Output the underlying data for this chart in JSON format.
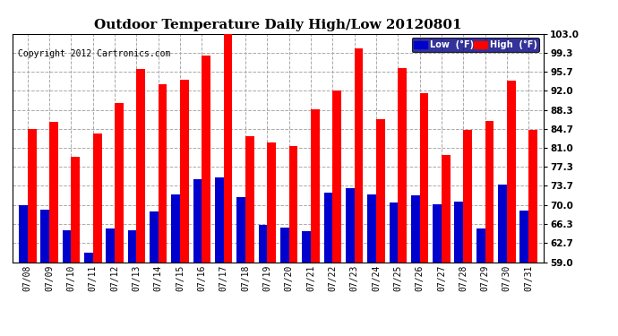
{
  "title": "Outdoor Temperature Daily High/Low 20120801",
  "copyright": "Copyright 2012 Cartronics.com",
  "legend_low": "Low  (°F)",
  "legend_high": "High  (°F)",
  "dates": [
    "07/08",
    "07/09",
    "07/10",
    "07/11",
    "07/12",
    "07/13",
    "07/14",
    "07/15",
    "07/16",
    "07/17",
    "07/18",
    "07/19",
    "07/20",
    "07/21",
    "07/22",
    "07/23",
    "07/24",
    "07/25",
    "07/26",
    "07/27",
    "07/28",
    "07/29",
    "07/30",
    "07/31"
  ],
  "high": [
    84.7,
    86.0,
    79.3,
    83.7,
    89.6,
    96.2,
    93.2,
    94.1,
    98.8,
    103.0,
    83.2,
    82.1,
    81.4,
    88.4,
    92.0,
    100.1,
    86.5,
    96.3,
    91.5,
    79.7,
    84.4,
    86.2,
    94.0,
    84.5
  ],
  "low": [
    70.0,
    69.1,
    65.2,
    60.8,
    65.5,
    65.1,
    68.8,
    72.0,
    75.0,
    75.3,
    71.5,
    66.1,
    65.7,
    65.0,
    72.4,
    73.2,
    72.0,
    70.4,
    71.9,
    70.2,
    70.6,
    65.5,
    74.0,
    69.0
  ],
  "ylim": [
    59.0,
    103.0
  ],
  "yticks": [
    59.0,
    62.7,
    66.3,
    70.0,
    73.7,
    77.3,
    81.0,
    84.7,
    88.3,
    92.0,
    95.7,
    99.3,
    103.0
  ],
  "color_high": "#ff0000",
  "color_low": "#0000cc",
  "bg_color": "#ffffff",
  "grid_color": "#aaaaaa",
  "title_fontsize": 11,
  "copyright_fontsize": 7,
  "legend_low_bg": "#0000cc",
  "legend_high_bg": "#ff0000"
}
